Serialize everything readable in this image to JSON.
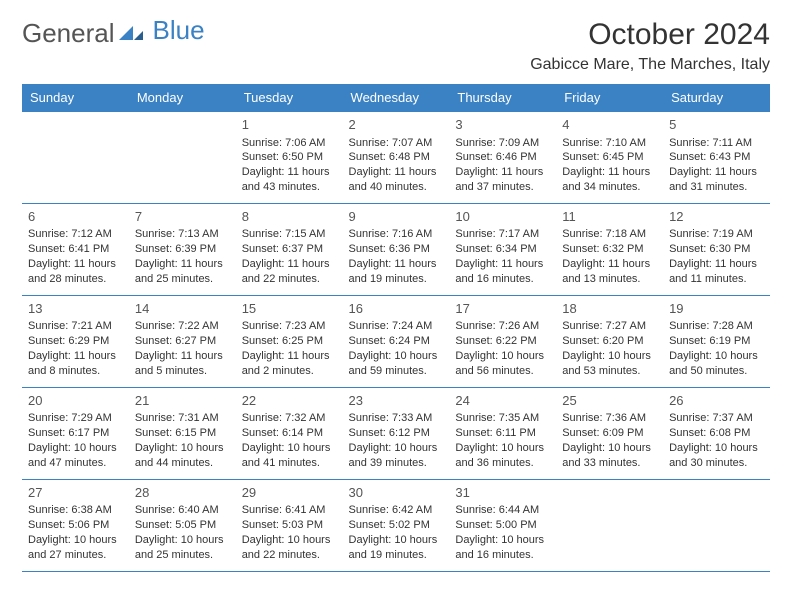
{
  "logo": {
    "text1": "General",
    "text2": "Blue"
  },
  "title": "October 2024",
  "location": "Gabicce Mare, The Marches, Italy",
  "colors": {
    "headerBg": "#3b82c4",
    "headerText": "#ffffff",
    "cellBorder": "#3b82c4",
    "bodyText": "#333333",
    "logoGray": "#555555",
    "logoBlue": "#3b82c4",
    "background": "#ffffff"
  },
  "typography": {
    "month_title_fontsize": 30,
    "location_fontsize": 16,
    "dayheader_fontsize": 13,
    "daynum_fontsize": 13,
    "cell_fontsize": 11,
    "font_family": "Arial"
  },
  "dayHeaders": [
    "Sunday",
    "Monday",
    "Tuesday",
    "Wednesday",
    "Thursday",
    "Friday",
    "Saturday"
  ],
  "weeks": [
    [
      null,
      null,
      {
        "n": "1",
        "sr": "7:06 AM",
        "ss": "6:50 PM",
        "dl": "11 hours and 43 minutes."
      },
      {
        "n": "2",
        "sr": "7:07 AM",
        "ss": "6:48 PM",
        "dl": "11 hours and 40 minutes."
      },
      {
        "n": "3",
        "sr": "7:09 AM",
        "ss": "6:46 PM",
        "dl": "11 hours and 37 minutes."
      },
      {
        "n": "4",
        "sr": "7:10 AM",
        "ss": "6:45 PM",
        "dl": "11 hours and 34 minutes."
      },
      {
        "n": "5",
        "sr": "7:11 AM",
        "ss": "6:43 PM",
        "dl": "11 hours and 31 minutes."
      }
    ],
    [
      {
        "n": "6",
        "sr": "7:12 AM",
        "ss": "6:41 PM",
        "dl": "11 hours and 28 minutes."
      },
      {
        "n": "7",
        "sr": "7:13 AM",
        "ss": "6:39 PM",
        "dl": "11 hours and 25 minutes."
      },
      {
        "n": "8",
        "sr": "7:15 AM",
        "ss": "6:37 PM",
        "dl": "11 hours and 22 minutes."
      },
      {
        "n": "9",
        "sr": "7:16 AM",
        "ss": "6:36 PM",
        "dl": "11 hours and 19 minutes."
      },
      {
        "n": "10",
        "sr": "7:17 AM",
        "ss": "6:34 PM",
        "dl": "11 hours and 16 minutes."
      },
      {
        "n": "11",
        "sr": "7:18 AM",
        "ss": "6:32 PM",
        "dl": "11 hours and 13 minutes."
      },
      {
        "n": "12",
        "sr": "7:19 AM",
        "ss": "6:30 PM",
        "dl": "11 hours and 11 minutes."
      }
    ],
    [
      {
        "n": "13",
        "sr": "7:21 AM",
        "ss": "6:29 PM",
        "dl": "11 hours and 8 minutes."
      },
      {
        "n": "14",
        "sr": "7:22 AM",
        "ss": "6:27 PM",
        "dl": "11 hours and 5 minutes."
      },
      {
        "n": "15",
        "sr": "7:23 AM",
        "ss": "6:25 PM",
        "dl": "11 hours and 2 minutes."
      },
      {
        "n": "16",
        "sr": "7:24 AM",
        "ss": "6:24 PM",
        "dl": "10 hours and 59 minutes."
      },
      {
        "n": "17",
        "sr": "7:26 AM",
        "ss": "6:22 PM",
        "dl": "10 hours and 56 minutes."
      },
      {
        "n": "18",
        "sr": "7:27 AM",
        "ss": "6:20 PM",
        "dl": "10 hours and 53 minutes."
      },
      {
        "n": "19",
        "sr": "7:28 AM",
        "ss": "6:19 PM",
        "dl": "10 hours and 50 minutes."
      }
    ],
    [
      {
        "n": "20",
        "sr": "7:29 AM",
        "ss": "6:17 PM",
        "dl": "10 hours and 47 minutes."
      },
      {
        "n": "21",
        "sr": "7:31 AM",
        "ss": "6:15 PM",
        "dl": "10 hours and 44 minutes."
      },
      {
        "n": "22",
        "sr": "7:32 AM",
        "ss": "6:14 PM",
        "dl": "10 hours and 41 minutes."
      },
      {
        "n": "23",
        "sr": "7:33 AM",
        "ss": "6:12 PM",
        "dl": "10 hours and 39 minutes."
      },
      {
        "n": "24",
        "sr": "7:35 AM",
        "ss": "6:11 PM",
        "dl": "10 hours and 36 minutes."
      },
      {
        "n": "25",
        "sr": "7:36 AM",
        "ss": "6:09 PM",
        "dl": "10 hours and 33 minutes."
      },
      {
        "n": "26",
        "sr": "7:37 AM",
        "ss": "6:08 PM",
        "dl": "10 hours and 30 minutes."
      }
    ],
    [
      {
        "n": "27",
        "sr": "6:38 AM",
        "ss": "5:06 PM",
        "dl": "10 hours and 27 minutes."
      },
      {
        "n": "28",
        "sr": "6:40 AM",
        "ss": "5:05 PM",
        "dl": "10 hours and 25 minutes."
      },
      {
        "n": "29",
        "sr": "6:41 AM",
        "ss": "5:03 PM",
        "dl": "10 hours and 22 minutes."
      },
      {
        "n": "30",
        "sr": "6:42 AM",
        "ss": "5:02 PM",
        "dl": "10 hours and 19 minutes."
      },
      {
        "n": "31",
        "sr": "6:44 AM",
        "ss": "5:00 PM",
        "dl": "10 hours and 16 minutes."
      },
      null,
      null
    ]
  ],
  "labels": {
    "sunrise": "Sunrise:",
    "sunset": "Sunset:",
    "daylight": "Daylight:"
  }
}
